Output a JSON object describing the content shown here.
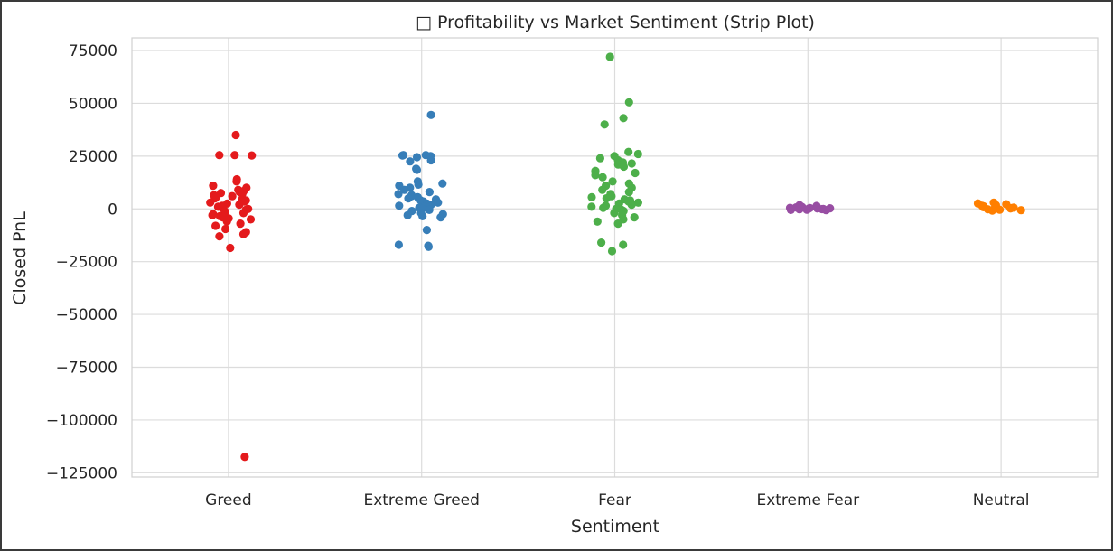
{
  "chart_data": {
    "type": "scatter",
    "subtype": "strip",
    "title": "□ Profitability vs Market Sentiment (Strip Plot)",
    "xlabel": "Sentiment",
    "ylabel": "Closed PnL",
    "ylim": [
      -127000,
      81000
    ],
    "yticks": [
      75000,
      50000,
      25000,
      0,
      -25000,
      -50000,
      -75000,
      -100000,
      -125000
    ],
    "ytick_labels": [
      "75000",
      "50000",
      "25000",
      "0",
      "−25000",
      "−50000",
      "−75000",
      "−100000",
      "−125000"
    ],
    "grid": true,
    "categories": [
      "Greed",
      "Extreme Greed",
      "Fear",
      "Extreme Fear",
      "Neutral"
    ],
    "colors": [
      "#e41a1c",
      "#377eb8",
      "#4daf4a",
      "#984ea3",
      "#ff7f00"
    ],
    "series": [
      {
        "values": [
          35000,
          25500,
          25500,
          25300,
          14000,
          13000,
          11000,
          10000,
          9000,
          8500,
          8000,
          7500,
          7000,
          6500,
          6000,
          5500,
          5000,
          4500,
          4000,
          3500,
          3000,
          2500,
          2000,
          1500,
          1000,
          500,
          0,
          -500,
          -1000,
          -1500,
          -2000,
          -2500,
          -3000,
          -3500,
          -4000,
          -4500,
          -5000,
          -6000,
          -7000,
          -8000,
          -9500,
          -11000,
          -12000,
          -13000,
          -18500,
          -117500
        ]
      },
      {
        "values": [
          44500,
          25500,
          25500,
          25300,
          25000,
          24500,
          23000,
          22500,
          19000,
          18500,
          13000,
          12000,
          11500,
          11000,
          10000,
          9000,
          8000,
          7000,
          6500,
          6000,
          5500,
          5000,
          4500,
          4000,
          3500,
          3000,
          2500,
          2000,
          1500,
          1000,
          500,
          0,
          -500,
          -1000,
          -2000,
          -2500,
          -3000,
          -3500,
          -4000,
          -10000,
          -17000,
          -17500,
          -18000
        ]
      },
      {
        "values": [
          72000,
          50500,
          43000,
          40000,
          27000,
          26000,
          25000,
          24000,
          23000,
          22000,
          21500,
          21000,
          20000,
          18000,
          17000,
          16000,
          15000,
          13000,
          12000,
          11000,
          10000,
          9000,
          8000,
          7000,
          6000,
          5500,
          5000,
          4500,
          4000,
          3500,
          3000,
          2500,
          2000,
          1500,
          1000,
          500,
          0,
          -500,
          -1000,
          -1500,
          -2000,
          -3000,
          -4000,
          -5000,
          -6000,
          -7000,
          -16000,
          -17000,
          -20000
        ]
      },
      {
        "values": [
          1800,
          1400,
          1100,
          900,
          700,
          600,
          500,
          400,
          300,
          200,
          100,
          0,
          -100,
          -200,
          -300,
          -400,
          -500,
          -600
        ]
      },
      {
        "values": [
          3000,
          2600,
          2200,
          1800,
          1500,
          1200,
          1000,
          800,
          600,
          400,
          200,
          0,
          -200,
          -400,
          -600,
          -800
        ]
      }
    ]
  }
}
